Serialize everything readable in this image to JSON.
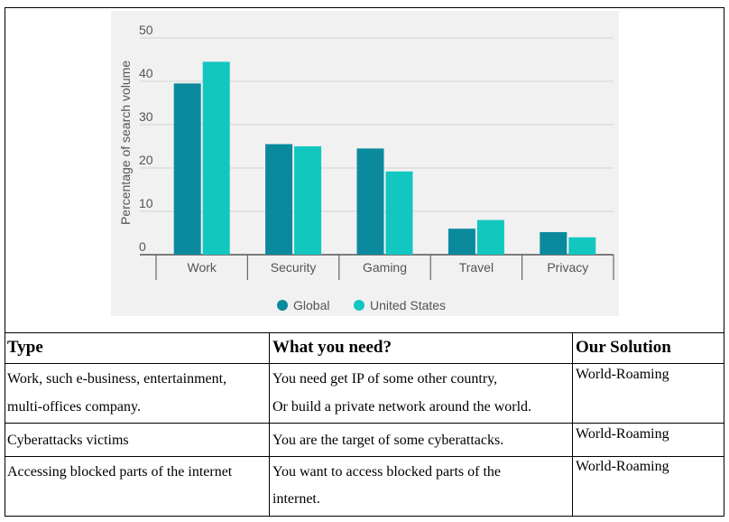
{
  "chart_data": {
    "type": "bar",
    "categories": [
      "Work",
      "Security",
      "Gaming",
      "Travel",
      "Privacy"
    ],
    "series": [
      {
        "name": "Global",
        "values": [
          39.5,
          25.5,
          24.5,
          6,
          5.2
        ]
      },
      {
        "name": "United States",
        "values": [
          44.5,
          25,
          19.2,
          8,
          4
        ]
      }
    ],
    "ylabel": "Percentage of search volume",
    "xlabel": "",
    "ylim": [
      0,
      50
    ],
    "yticks": [
      0,
      10,
      20,
      30,
      40,
      50
    ],
    "grid": true,
    "legend": "bottom",
    "colors": {
      "Global": "#0b8a9e",
      "United States": "#12c7c0"
    }
  },
  "table": {
    "headers": [
      "Type",
      "What you need?",
      "Our Solution"
    ],
    "rows": [
      {
        "type": [
          "Work, such e-business, entertainment,",
          "multi-offices company."
        ],
        "need": [
          "You need get IP of some other country,",
          "Or build a private network around the world."
        ],
        "solution": "World-Roaming"
      },
      {
        "type": [
          "Cyberattacks  victims"
        ],
        "need": [
          "You are the target of some cyberattacks."
        ],
        "solution": "World-Roaming"
      },
      {
        "type": [
          "Accessing blocked parts of the internet"
        ],
        "need": [
          "You want to access blocked parts of the",
          "internet."
        ],
        "solution": "World-Roaming"
      }
    ]
  }
}
